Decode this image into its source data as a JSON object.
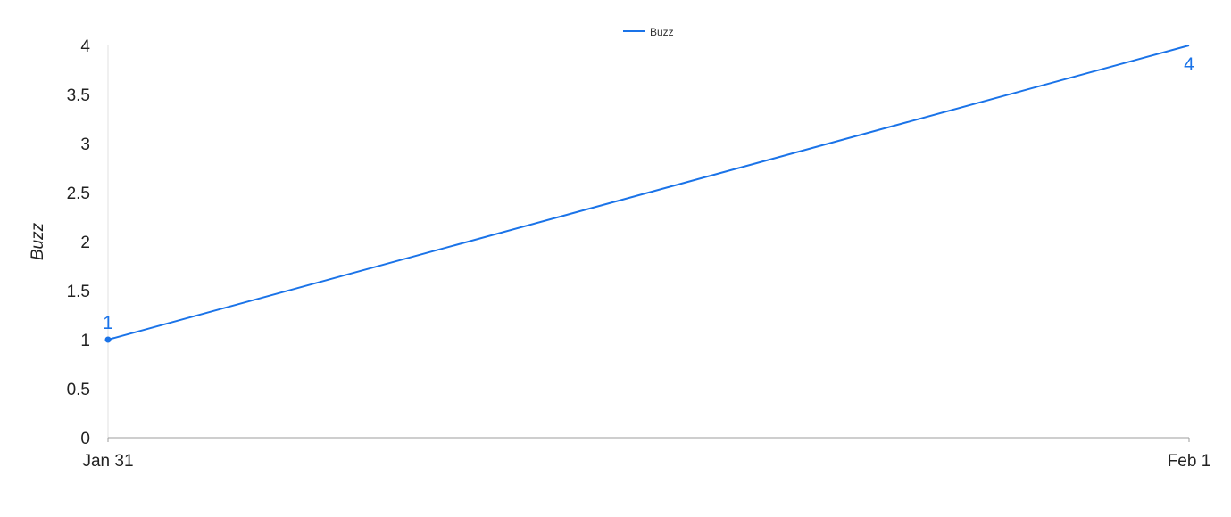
{
  "chart_data": {
    "type": "line",
    "title": "",
    "xlabel": "",
    "ylabel": "Buzz",
    "x": [
      "Jan 31",
      "Feb 1"
    ],
    "series": [
      {
        "name": "Buzz",
        "values": [
          1,
          4
        ],
        "color": "#1a73e8",
        "data_labels": [
          "1",
          "4"
        ]
      }
    ],
    "ylim": [
      0,
      4
    ],
    "yticks": [
      0,
      0.5,
      1,
      1.5,
      2,
      2.5,
      3,
      3.5,
      4
    ],
    "ytick_labels": [
      "0",
      "0.5",
      "1",
      "1.5",
      "2",
      "2.5",
      "3",
      "3.5",
      "4"
    ],
    "xtick_labels": [
      "Jan 31",
      "Feb 1"
    ],
    "grid": false,
    "legend": "top-center",
    "axis_color": "#9e9e9e"
  }
}
